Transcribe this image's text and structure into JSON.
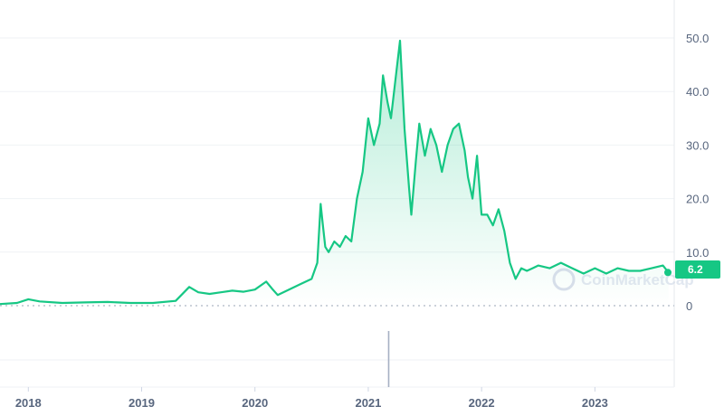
{
  "chart_data": {
    "type": "area",
    "title": "",
    "xlabel": "",
    "ylabel": "",
    "ylim": [
      0,
      55
    ],
    "grid": "horizontal",
    "x_ticks": [
      "2018",
      "2019",
      "2020",
      "2021",
      "2022",
      "2023"
    ],
    "y_ticks": [
      "50.0",
      "40.0",
      "30.0",
      "20.0",
      "10.0",
      "0"
    ],
    "series": [
      {
        "color": "#16c784",
        "x": [
          2017.75,
          2017.9,
          2018.0,
          2018.1,
          2018.3,
          2018.5,
          2018.7,
          2018.9,
          2019.1,
          2019.3,
          2019.42,
          2019.5,
          2019.6,
          2019.7,
          2019.8,
          2019.9,
          2020.0,
          2020.1,
          2020.15,
          2020.2,
          2020.3,
          2020.4,
          2020.5,
          2020.55,
          2020.58,
          2020.6,
          2020.62,
          2020.65,
          2020.7,
          2020.75,
          2020.8,
          2020.85,
          2020.9,
          2020.95,
          2021.0,
          2021.05,
          2021.1,
          2021.13,
          2021.17,
          2021.2,
          2021.25,
          2021.28,
          2021.32,
          2021.36,
          2021.38,
          2021.42,
          2021.45,
          2021.5,
          2021.55,
          2021.6,
          2021.65,
          2021.7,
          2021.75,
          2021.8,
          2021.85,
          2021.88,
          2021.92,
          2021.96,
          2022.0,
          2022.05,
          2022.1,
          2022.15,
          2022.2,
          2022.25,
          2022.3,
          2022.35,
          2022.4,
          2022.45,
          2022.5,
          2022.6,
          2022.7,
          2022.8,
          2022.9,
          2023.0,
          2023.1,
          2023.2,
          2023.3,
          2023.4,
          2023.5,
          2023.6,
          2023.65
        ],
        "y": [
          0.3,
          0.5,
          1.2,
          0.8,
          0.5,
          0.6,
          0.7,
          0.5,
          0.5,
          0.9,
          3.5,
          2.5,
          2.2,
          2.5,
          2.8,
          2.6,
          3.0,
          4.5,
          3.2,
          2.0,
          3.0,
          4.0,
          5.0,
          8.0,
          19.0,
          15.0,
          11.0,
          10.0,
          12.0,
          11.0,
          13.0,
          12.0,
          20.0,
          25.0,
          35.0,
          30.0,
          34.0,
          43.0,
          38.0,
          35.0,
          44.0,
          49.5,
          33.0,
          22.0,
          17.0,
          27.0,
          34.0,
          28.0,
          33.0,
          30.0,
          25.0,
          30.0,
          33.0,
          34.0,
          29.0,
          24.0,
          20.0,
          28.0,
          17.0,
          17.0,
          15.0,
          18.0,
          14.0,
          8.0,
          5.0,
          7.0,
          6.5,
          7.0,
          7.5,
          7.0,
          8.0,
          7.0,
          6.0,
          7.0,
          6.0,
          7.0,
          6.5,
          6.5,
          7.0,
          7.5,
          6.2
        ]
      }
    ],
    "volume": {
      "x": [
        2021.18
      ],
      "values": [
        1.0
      ]
    },
    "current_value_label": "6.2",
    "watermark": "CoinMarketCap",
    "colors": {
      "line": "#16c784",
      "badge": "#16c784",
      "grid": "#eff2f5",
      "axis_text": "#58667e",
      "volume": "#a6b0c3"
    }
  }
}
